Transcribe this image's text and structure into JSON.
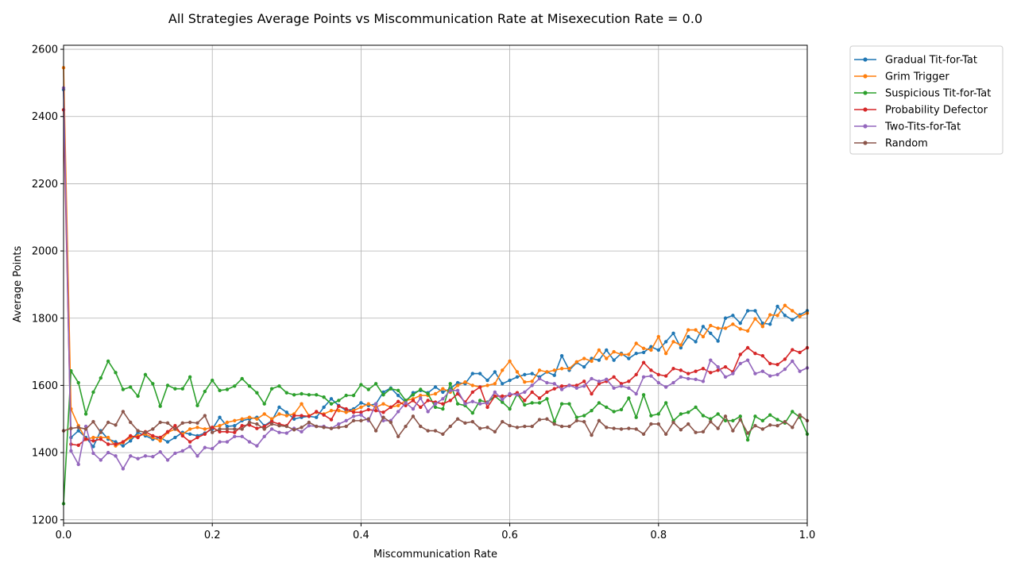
{
  "chart_data": {
    "type": "line",
    "title": "All Strategies Average Points vs Miscommunication Rate at Misexecution Rate = 0.0",
    "xlabel": "Miscommunication Rate",
    "ylabel": "Average Points",
    "xlim": [
      0.0,
      1.0
    ],
    "ylim": [
      1190,
      2612
    ],
    "x_ticks": [
      0.0,
      0.2,
      0.4,
      0.6,
      0.8,
      1.0
    ],
    "x_tick_labels": [
      "0.0",
      "0.2",
      "0.4",
      "0.6",
      "0.8",
      "1.0"
    ],
    "y_ticks": [
      1200,
      1400,
      1600,
      1800,
      2000,
      2200,
      2400,
      2600
    ],
    "y_tick_labels": [
      "1200",
      "1400",
      "1600",
      "1800",
      "2000",
      "2200",
      "2400",
      "2600"
    ],
    "grid": true,
    "legend_position": "outside-right-top",
    "x": [
      0.0,
      0.01,
      0.02,
      0.03,
      0.04,
      0.05,
      0.06,
      0.07,
      0.08,
      0.09,
      0.1,
      0.11,
      0.12,
      0.13,
      0.14,
      0.15,
      0.16,
      0.17,
      0.18,
      0.19,
      0.2,
      0.21,
      0.22,
      0.23,
      0.24,
      0.25,
      0.26,
      0.27,
      0.28,
      0.29,
      0.3,
      0.31,
      0.32,
      0.33,
      0.34,
      0.35,
      0.36,
      0.37,
      0.38,
      0.39,
      0.4,
      0.41,
      0.42,
      0.43,
      0.44,
      0.45,
      0.46,
      0.47,
      0.48,
      0.49,
      0.5,
      0.51,
      0.52,
      0.53,
      0.54,
      0.55,
      0.56,
      0.57,
      0.58,
      0.59,
      0.6,
      0.61,
      0.62,
      0.63,
      0.64,
      0.65,
      0.66,
      0.67,
      0.68,
      0.69,
      0.7,
      0.71,
      0.72,
      0.73,
      0.74,
      0.75,
      0.76,
      0.77,
      0.78,
      0.79,
      0.8,
      0.81,
      0.82,
      0.83,
      0.84,
      0.85,
      0.86,
      0.87,
      0.88,
      0.89,
      0.9,
      0.91,
      0.92,
      0.93,
      0.94,
      0.95,
      0.96,
      0.97,
      0.98,
      0.99,
      1.0
    ],
    "series": [
      {
        "name": "Gradual Tit-for-Tat",
        "color": "#1f77b4",
        "values": [
          2480,
          1445,
          1465,
          1445,
          1418,
          1465,
          1440,
          1432,
          1420,
          1435,
          1460,
          1450,
          1440,
          1445,
          1432,
          1445,
          1460,
          1455,
          1450,
          1458,
          1470,
          1505,
          1478,
          1480,
          1495,
          1500,
          1505,
          1480,
          1495,
          1535,
          1520,
          1500,
          1505,
          1508,
          1505,
          1535,
          1560,
          1540,
          1525,
          1530,
          1548,
          1540,
          1545,
          1580,
          1592,
          1570,
          1550,
          1578,
          1585,
          1578,
          1595,
          1580,
          1590,
          1608,
          1605,
          1635,
          1635,
          1615,
          1640,
          1605,
          1615,
          1625,
          1632,
          1635,
          1625,
          1640,
          1630,
          1688,
          1645,
          1668,
          1655,
          1680,
          1675,
          1705,
          1675,
          1695,
          1680,
          1695,
          1698,
          1715,
          1705,
          1730,
          1755,
          1712,
          1745,
          1730,
          1775,
          1755,
          1732,
          1800,
          1808,
          1785,
          1822,
          1822,
          1785,
          1782,
          1835,
          1808,
          1795,
          1810,
          1822
        ]
      },
      {
        "name": "Grim Trigger",
        "color": "#ff7f0e",
        "values": [
          2545,
          1530,
          1480,
          1440,
          1445,
          1445,
          1445,
          1420,
          1430,
          1445,
          1450,
          1455,
          1445,
          1435,
          1460,
          1470,
          1455,
          1470,
          1475,
          1470,
          1475,
          1480,
          1490,
          1495,
          1500,
          1505,
          1500,
          1515,
          1500,
          1515,
          1510,
          1515,
          1545,
          1510,
          1520,
          1515,
          1525,
          1525,
          1520,
          1525,
          1535,
          1545,
          1535,
          1545,
          1535,
          1540,
          1555,
          1560,
          1570,
          1570,
          1575,
          1590,
          1580,
          1600,
          1610,
          1600,
          1595,
          1600,
          1605,
          1645,
          1672,
          1640,
          1610,
          1612,
          1645,
          1640,
          1645,
          1650,
          1650,
          1670,
          1680,
          1672,
          1705,
          1680,
          1700,
          1692,
          1692,
          1725,
          1710,
          1705,
          1745,
          1695,
          1730,
          1720,
          1765,
          1765,
          1745,
          1778,
          1770,
          1770,
          1782,
          1768,
          1762,
          1798,
          1775,
          1810,
          1808,
          1838,
          1822,
          1805,
          1815
        ]
      },
      {
        "name": "Suspicious Tit-for-Tat",
        "color": "#2ca02c",
        "values": [
          1248,
          1643,
          1608,
          1515,
          1580,
          1622,
          1672,
          1638,
          1588,
          1595,
          1568,
          1632,
          1605,
          1538,
          1600,
          1590,
          1590,
          1625,
          1540,
          1582,
          1615,
          1585,
          1588,
          1598,
          1620,
          1598,
          1578,
          1545,
          1590,
          1598,
          1578,
          1572,
          1575,
          1572,
          1572,
          1565,
          1545,
          1555,
          1570,
          1570,
          1602,
          1588,
          1605,
          1572,
          1590,
          1585,
          1555,
          1572,
          1588,
          1575,
          1535,
          1530,
          1605,
          1545,
          1540,
          1518,
          1555,
          1550,
          1568,
          1550,
          1530,
          1575,
          1542,
          1548,
          1548,
          1560,
          1492,
          1545,
          1545,
          1505,
          1510,
          1525,
          1548,
          1535,
          1522,
          1528,
          1562,
          1505,
          1572,
          1510,
          1515,
          1548,
          1495,
          1515,
          1520,
          1535,
          1510,
          1500,
          1515,
          1495,
          1495,
          1508,
          1438,
          1508,
          1495,
          1512,
          1498,
          1488,
          1522,
          1505,
          1455
        ]
      },
      {
        "name": "Probability Defector",
        "color": "#d62728",
        "values": [
          2420,
          1425,
          1422,
          1440,
          1435,
          1440,
          1425,
          1425,
          1432,
          1450,
          1445,
          1462,
          1450,
          1445,
          1462,
          1480,
          1450,
          1432,
          1445,
          1455,
          1475,
          1462,
          1462,
          1460,
          1480,
          1482,
          1472,
          1478,
          1492,
          1485,
          1480,
          1510,
          1510,
          1508,
          1522,
          1512,
          1498,
          1538,
          1530,
          1520,
          1520,
          1528,
          1525,
          1520,
          1535,
          1552,
          1540,
          1555,
          1535,
          1555,
          1550,
          1545,
          1555,
          1575,
          1550,
          1580,
          1595,
          1535,
          1568,
          1568,
          1570,
          1578,
          1555,
          1580,
          1562,
          1580,
          1590,
          1598,
          1600,
          1600,
          1612,
          1575,
          1605,
          1612,
          1625,
          1605,
          1612,
          1632,
          1668,
          1645,
          1632,
          1628,
          1650,
          1645,
          1635,
          1642,
          1650,
          1638,
          1645,
          1655,
          1640,
          1692,
          1712,
          1695,
          1688,
          1665,
          1662,
          1678,
          1706,
          1698,
          1712
        ]
      },
      {
        "name": "Two-Tits-for-Tat",
        "color": "#9467bd",
        "values": [
          2485,
          1405,
          1365,
          1478,
          1398,
          1378,
          1400,
          1390,
          1352,
          1390,
          1382,
          1390,
          1388,
          1402,
          1378,
          1398,
          1405,
          1418,
          1390,
          1415,
          1412,
          1432,
          1432,
          1448,
          1448,
          1432,
          1420,
          1448,
          1470,
          1460,
          1458,
          1472,
          1462,
          1480,
          1478,
          1478,
          1472,
          1485,
          1495,
          1508,
          1512,
          1495,
          1545,
          1495,
          1495,
          1522,
          1548,
          1530,
          1562,
          1522,
          1545,
          1560,
          1585,
          1585,
          1545,
          1552,
          1545,
          1548,
          1580,
          1558,
          1575,
          1572,
          1580,
          1600,
          1620,
          1608,
          1605,
          1588,
          1600,
          1592,
          1598,
          1620,
          1612,
          1618,
          1592,
          1598,
          1592,
          1575,
          1625,
          1628,
          1608,
          1595,
          1608,
          1625,
          1620,
          1618,
          1612,
          1675,
          1655,
          1625,
          1635,
          1665,
          1675,
          1635,
          1642,
          1628,
          1632,
          1648,
          1672,
          1642,
          1652
        ]
      },
      {
        "name": "Random",
        "color": "#8c564b",
        "values": [
          1465,
          1472,
          1475,
          1470,
          1492,
          1460,
          1490,
          1482,
          1522,
          1490,
          1465,
          1460,
          1470,
          1490,
          1488,
          1470,
          1488,
          1490,
          1488,
          1510,
          1460,
          1470,
          1470,
          1470,
          1470,
          1490,
          1485,
          1470,
          1485,
          1480,
          1478,
          1468,
          1475,
          1490,
          1478,
          1475,
          1472,
          1475,
          1478,
          1495,
          1495,
          1500,
          1465,
          1505,
          1490,
          1448,
          1478,
          1508,
          1478,
          1465,
          1465,
          1455,
          1478,
          1500,
          1488,
          1492,
          1472,
          1475,
          1462,
          1492,
          1480,
          1475,
          1478,
          1478,
          1498,
          1500,
          1485,
          1478,
          1478,
          1495,
          1492,
          1452,
          1495,
          1475,
          1472,
          1470,
          1472,
          1470,
          1455,
          1485,
          1485,
          1455,
          1490,
          1468,
          1485,
          1460,
          1462,
          1492,
          1472,
          1508,
          1465,
          1498,
          1458,
          1480,
          1470,
          1482,
          1480,
          1492,
          1475,
          1512,
          1495
        ]
      }
    ]
  }
}
